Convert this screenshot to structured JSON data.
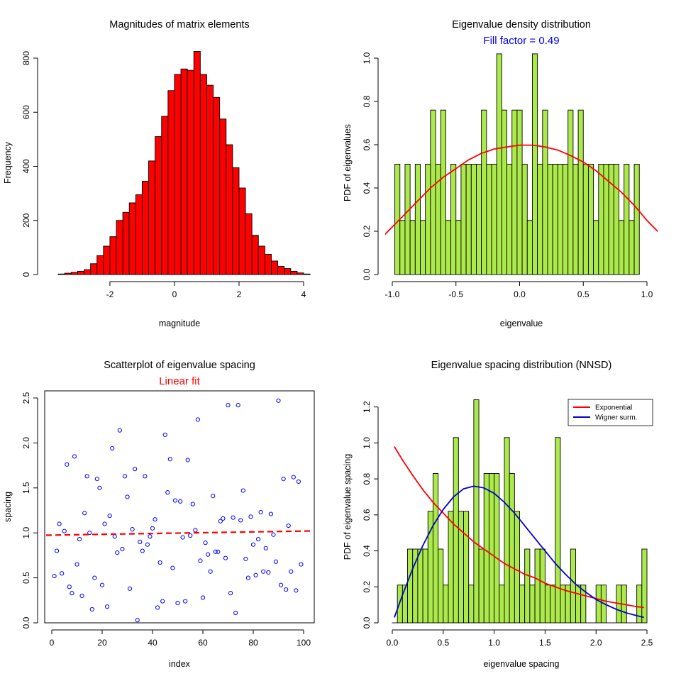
{
  "chart_data": [
    {
      "type": "bar",
      "subtype": "histogram",
      "title": "Magnitudes of matrix elements",
      "xlabel": "magnitude",
      "ylabel": "Frequency",
      "xlim": [
        -3.8,
        4.0
      ],
      "ylim": [
        0,
        800
      ],
      "xticks": [
        -2,
        0,
        2,
        4
      ],
      "yticks": [
        0,
        200,
        400,
        600,
        800
      ],
      "bin_start": -3.6,
      "bin_width": 0.2,
      "values": [
        2,
        5,
        8,
        12,
        18,
        40,
        70,
        105,
        140,
        200,
        230,
        265,
        295,
        345,
        420,
        510,
        585,
        680,
        740,
        760,
        755,
        825,
        740,
        700,
        655,
        575,
        480,
        395,
        320,
        225,
        145,
        105,
        75,
        50,
        30,
        22,
        12,
        6,
        2
      ],
      "bar_color": "#ff0000"
    },
    {
      "type": "bar",
      "subtype": "histogram",
      "title": "Eigenvalue density distribution",
      "subtitle": "Fill factor = 0.49",
      "subtitle_color": "#0000ff",
      "xlabel": "eigenvalue",
      "ylabel": "PDF of eigenvalues",
      "xlim": [
        -1.0,
        1.0
      ],
      "ylim": [
        0,
        1.0
      ],
      "xticks": [
        -1.0,
        -0.5,
        0.0,
        0.5,
        1.0
      ],
      "yticks": [
        0.0,
        0.2,
        0.4,
        0.6,
        0.8,
        1.0
      ],
      "bin_start": -0.98,
      "bin_width": 0.04,
      "values": [
        0.51,
        0.25,
        0.51,
        0.25,
        0.51,
        0.25,
        0.51,
        0.76,
        0.51,
        0.76,
        0.25,
        0.51,
        0.25,
        0.51,
        0.51,
        0.51,
        0.51,
        0.76,
        0.51,
        0.51,
        1.02,
        0.76,
        0.51,
        0.76,
        0.76,
        0.51,
        0.25,
        1.02,
        0.51,
        0.76,
        0.51,
        0.51,
        0.51,
        0.51,
        0.76,
        0.51,
        0.76,
        0.51,
        0.51,
        0.25,
        0.51,
        0.51,
        0.51,
        0.51,
        0.25,
        0.51,
        0.25,
        0.51
      ],
      "bar_color": "#acea4b",
      "curve": {
        "color": "#ff0000",
        "x": [
          -1.1,
          -1.0,
          -0.9,
          -0.8,
          -0.7,
          -0.6,
          -0.5,
          -0.4,
          -0.3,
          -0.2,
          -0.1,
          0.0,
          0.1,
          0.2,
          0.3,
          0.4,
          0.5,
          0.6,
          0.7,
          0.8,
          0.9,
          1.0,
          1.1
        ],
        "y": [
          0.16,
          0.22,
          0.28,
          0.34,
          0.4,
          0.45,
          0.49,
          0.53,
          0.56,
          0.58,
          0.59,
          0.598,
          0.598,
          0.59,
          0.575,
          0.55,
          0.52,
          0.48,
          0.43,
          0.38,
          0.32,
          0.25,
          0.19
        ]
      }
    },
    {
      "type": "scatter",
      "title": "Scatterplot of eigenvalue spacing",
      "subtitle": "Linear fit",
      "subtitle_color": "#ff0000",
      "xlabel": "index",
      "ylabel": "spacing",
      "xlim": [
        0,
        100
      ],
      "ylim": [
        0,
        2.5
      ],
      "xticks": [
        0,
        20,
        40,
        60,
        80,
        100
      ],
      "yticks": [
        0.0,
        0.5,
        1.0,
        1.5,
        2.0,
        2.5
      ],
      "point_color": "#0000ff",
      "x": [
        1,
        2,
        3,
        4,
        5,
        6,
        7,
        8,
        9,
        10,
        11,
        12,
        13,
        14,
        15,
        16,
        17,
        18,
        19,
        20,
        21,
        22,
        23,
        24,
        25,
        26,
        27,
        28,
        29,
        30,
        31,
        32,
        33,
        34,
        35,
        36,
        37,
        38,
        39,
        40,
        41,
        42,
        43,
        44,
        45,
        46,
        47,
        48,
        49,
        50,
        51,
        52,
        53,
        54,
        55,
        56,
        57,
        58,
        59,
        60,
        61,
        62,
        63,
        64,
        65,
        66,
        67,
        68,
        69,
        70,
        71,
        72,
        73,
        74,
        75,
        76,
        77,
        78,
        79,
        80,
        81,
        82,
        83,
        84,
        85,
        86,
        87,
        88,
        89,
        90,
        91,
        92,
        93,
        94,
        95,
        96,
        97,
        98,
        99
      ],
      "y": [
        0.52,
        0.8,
        1.1,
        0.55,
        1.02,
        1.76,
        0.4,
        0.33,
        1.85,
        0.65,
        0.93,
        0.3,
        1.22,
        1.63,
        1.0,
        0.15,
        0.5,
        1.6,
        1.5,
        0.42,
        1.1,
        0.18,
        1.19,
        1.94,
        0.96,
        0.78,
        2.14,
        0.82,
        1.63,
        1.4,
        0.38,
        1.04,
        1.71,
        0.03,
        0.9,
        0.8,
        1.63,
        0.87,
        0.96,
        1.05,
        1.15,
        0.17,
        0.67,
        0.24,
        2.09,
        1.45,
        1.82,
        0.61,
        1.36,
        0.22,
        1.35,
        0.95,
        0.24,
        1.81,
        0.97,
        1.32,
        1.03,
        2.26,
        0.69,
        0.28,
        0.89,
        0.76,
        0.57,
        1.41,
        0.79,
        0.79,
        1.13,
        1.16,
        0.72,
        2.42,
        0.33,
        1.17,
        0.11,
        2.42,
        1.14,
        1.47,
        0.71,
        0.5,
        1.18,
        0.87,
        0.53,
        0.93,
        1.23,
        0.57,
        0.83,
        0.56,
        1.21,
        0.98,
        0.68,
        2.47,
        0.42,
        1.6,
        0.37,
        1.08,
        0.57,
        1.62,
        0.36,
        1.57,
        0.65
      ],
      "fit": {
        "color": "#ff0000",
        "x": [
          0,
          100
        ],
        "y": [
          0.975,
          1.02
        ]
      }
    },
    {
      "type": "bar",
      "subtype": "histogram",
      "title": "Eigenvalue spacing distribution (NNSD)",
      "xlabel": "eigenvalue spacing",
      "ylabel": "PDF of eigenvalue spacing",
      "xlim": [
        0,
        2.5
      ],
      "ylim": [
        0,
        1.25
      ],
      "xticks": [
        0.0,
        0.5,
        1.0,
        1.5,
        2.0,
        2.5
      ],
      "yticks": [
        0.0,
        0.2,
        0.4,
        0.6,
        0.8,
        1.0,
        1.2
      ],
      "bin_start": 0.0,
      "bin_width": 0.05,
      "values": [
        0.0,
        0.21,
        0.21,
        0.41,
        0.41,
        0.41,
        0.41,
        0.62,
        0.83,
        0.41,
        0.21,
        0.62,
        1.03,
        0.62,
        0.62,
        0.21,
        1.24,
        0.41,
        0.83,
        0.83,
        0.83,
        0.21,
        1.03,
        0.83,
        0.62,
        0.21,
        0.41,
        0.21,
        0.41,
        0.41,
        0.21,
        0.21,
        1.03,
        0.21,
        0.21,
        0.41,
        0.21,
        0.21,
        0.0,
        0.0,
        0.21,
        0.21,
        0.0,
        0.0,
        0.21,
        0.21,
        0.0,
        0.0,
        0.21,
        0.41
      ],
      "bar_color": "#acea4b",
      "series": [
        {
          "name": "Exponential",
          "color": "#ff0000",
          "x": [
            0.02,
            0.1,
            0.2,
            0.3,
            0.4,
            0.5,
            0.6,
            0.7,
            0.8,
            0.9,
            1.0,
            1.1,
            1.2,
            1.3,
            1.4,
            1.5,
            1.6,
            1.7,
            1.8,
            1.9,
            2.0,
            2.1,
            2.2,
            2.3,
            2.4,
            2.47
          ],
          "y": [
            0.98,
            0.905,
            0.82,
            0.74,
            0.67,
            0.61,
            0.55,
            0.5,
            0.45,
            0.41,
            0.37,
            0.33,
            0.3,
            0.27,
            0.25,
            0.22,
            0.2,
            0.18,
            0.165,
            0.15,
            0.135,
            0.12,
            0.11,
            0.1,
            0.09,
            0.085
          ]
        },
        {
          "name": "Wigner surm.",
          "color": "#0000cc",
          "x": [
            0.02,
            0.1,
            0.2,
            0.3,
            0.4,
            0.5,
            0.6,
            0.7,
            0.8,
            0.9,
            1.0,
            1.1,
            1.2,
            1.3,
            1.4,
            1.5,
            1.6,
            1.7,
            1.8,
            1.9,
            2.0,
            2.1,
            2.2,
            2.3,
            2.4,
            2.47
          ],
          "y": [
            0.03,
            0.155,
            0.3,
            0.43,
            0.54,
            0.63,
            0.7,
            0.745,
            0.76,
            0.75,
            0.72,
            0.67,
            0.61,
            0.54,
            0.47,
            0.4,
            0.33,
            0.27,
            0.215,
            0.17,
            0.13,
            0.1,
            0.075,
            0.055,
            0.04,
            0.03
          ]
        }
      ],
      "legend": "top-right"
    }
  ]
}
